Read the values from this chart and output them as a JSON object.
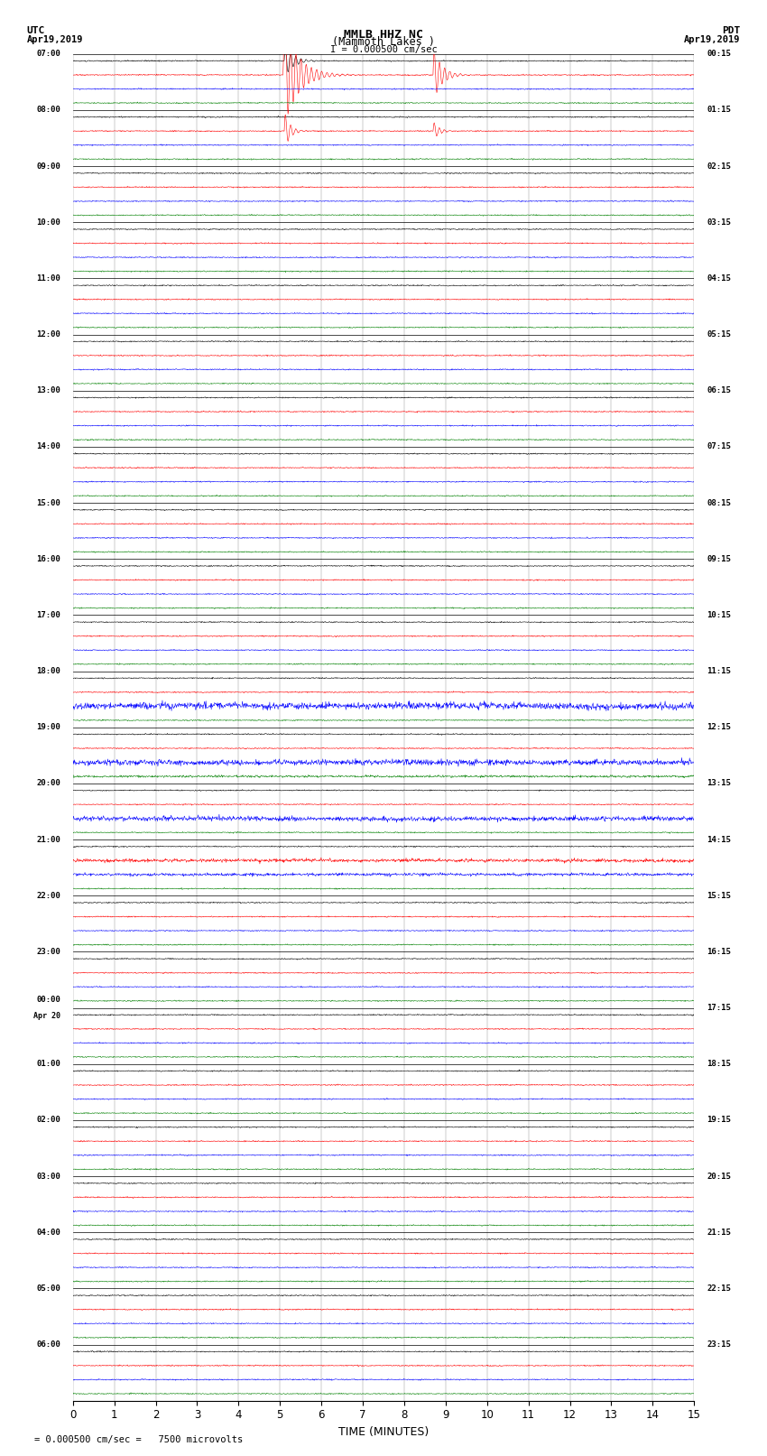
{
  "title_line1": "MMLB HHZ NC",
  "title_line2": "(Mammoth Lakes )",
  "scale_label": "I = 0.000500 cm/sec",
  "left_header_line1": "UTC",
  "left_header_line2": "Apr19,2019",
  "right_header_line1": "PDT",
  "right_header_line2": "Apr19,2019",
  "xlabel": "TIME (MINUTES)",
  "bottom_note": "= 0.000500 cm/sec =   7500 microvolts",
  "bg_color": "#ffffff",
  "trace_colors": [
    "black",
    "red",
    "blue",
    "green"
  ],
  "left_labels_utc": [
    "07:00",
    "08:00",
    "09:00",
    "10:00",
    "11:00",
    "12:00",
    "13:00",
    "14:00",
    "15:00",
    "16:00",
    "17:00",
    "18:00",
    "19:00",
    "20:00",
    "21:00",
    "22:00",
    "23:00",
    "Apr 20\n00:00",
    "01:00",
    "02:00",
    "03:00",
    "04:00",
    "05:00",
    "06:00"
  ],
  "right_labels_pdt": [
    "00:15",
    "01:15",
    "02:15",
    "03:15",
    "04:15",
    "05:15",
    "06:15",
    "07:15",
    "08:15",
    "09:15",
    "10:15",
    "11:15",
    "12:15",
    "13:15",
    "14:15",
    "15:15",
    "16:15",
    "17:15",
    "18:15",
    "19:15",
    "20:15",
    "21:15",
    "22:15",
    "23:15"
  ],
  "xmin": 0,
  "xmax": 15,
  "noise_amplitude": 0.25,
  "num_trace_groups": 24,
  "traces_per_group": 4
}
